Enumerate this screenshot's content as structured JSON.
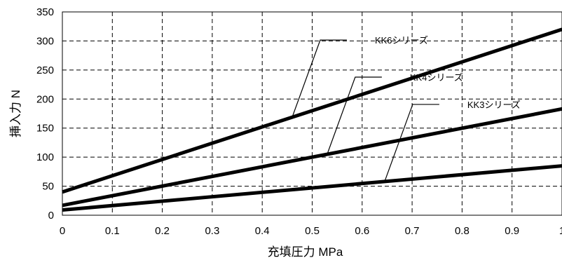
{
  "chart_data": {
    "type": "line",
    "title": "",
    "xlabel": "充填圧力 MPa",
    "ylabel": "挿入力 N",
    "xlim": [
      0,
      1
    ],
    "ylim": [
      0,
      350
    ],
    "x_ticks": [
      0,
      0.1,
      0.2,
      0.3,
      0.4,
      0.5,
      0.6,
      0.7,
      0.8,
      0.9,
      1
    ],
    "x_tick_labels": [
      "0",
      "0.1",
      "0.2",
      "0.3",
      "0.4",
      "0.5",
      "0.6",
      "0.7",
      "0.8",
      "0.9",
      "1"
    ],
    "y_ticks": [
      0,
      50,
      100,
      150,
      200,
      250,
      300,
      350
    ],
    "y_tick_labels": [
      "0",
      "50",
      "100",
      "150",
      "200",
      "250",
      "300",
      "350"
    ],
    "grid": true,
    "grid_style": "dashed",
    "legend": "leader-line callouts",
    "line_color": "#000000",
    "series": [
      {
        "name": "KK6シリーズ",
        "x": [
          0,
          1
        ],
        "y": [
          40,
          320
        ],
        "label_at_x": 0.46
      },
      {
        "name": "KK4シリーズ",
        "x": [
          0,
          1
        ],
        "y": [
          17,
          183
        ],
        "label_at_x": 0.53
      },
      {
        "name": "KK3シリーズ",
        "x": [
          0,
          1
        ],
        "y": [
          9,
          85
        ],
        "label_at_x": 0.645
      }
    ]
  }
}
